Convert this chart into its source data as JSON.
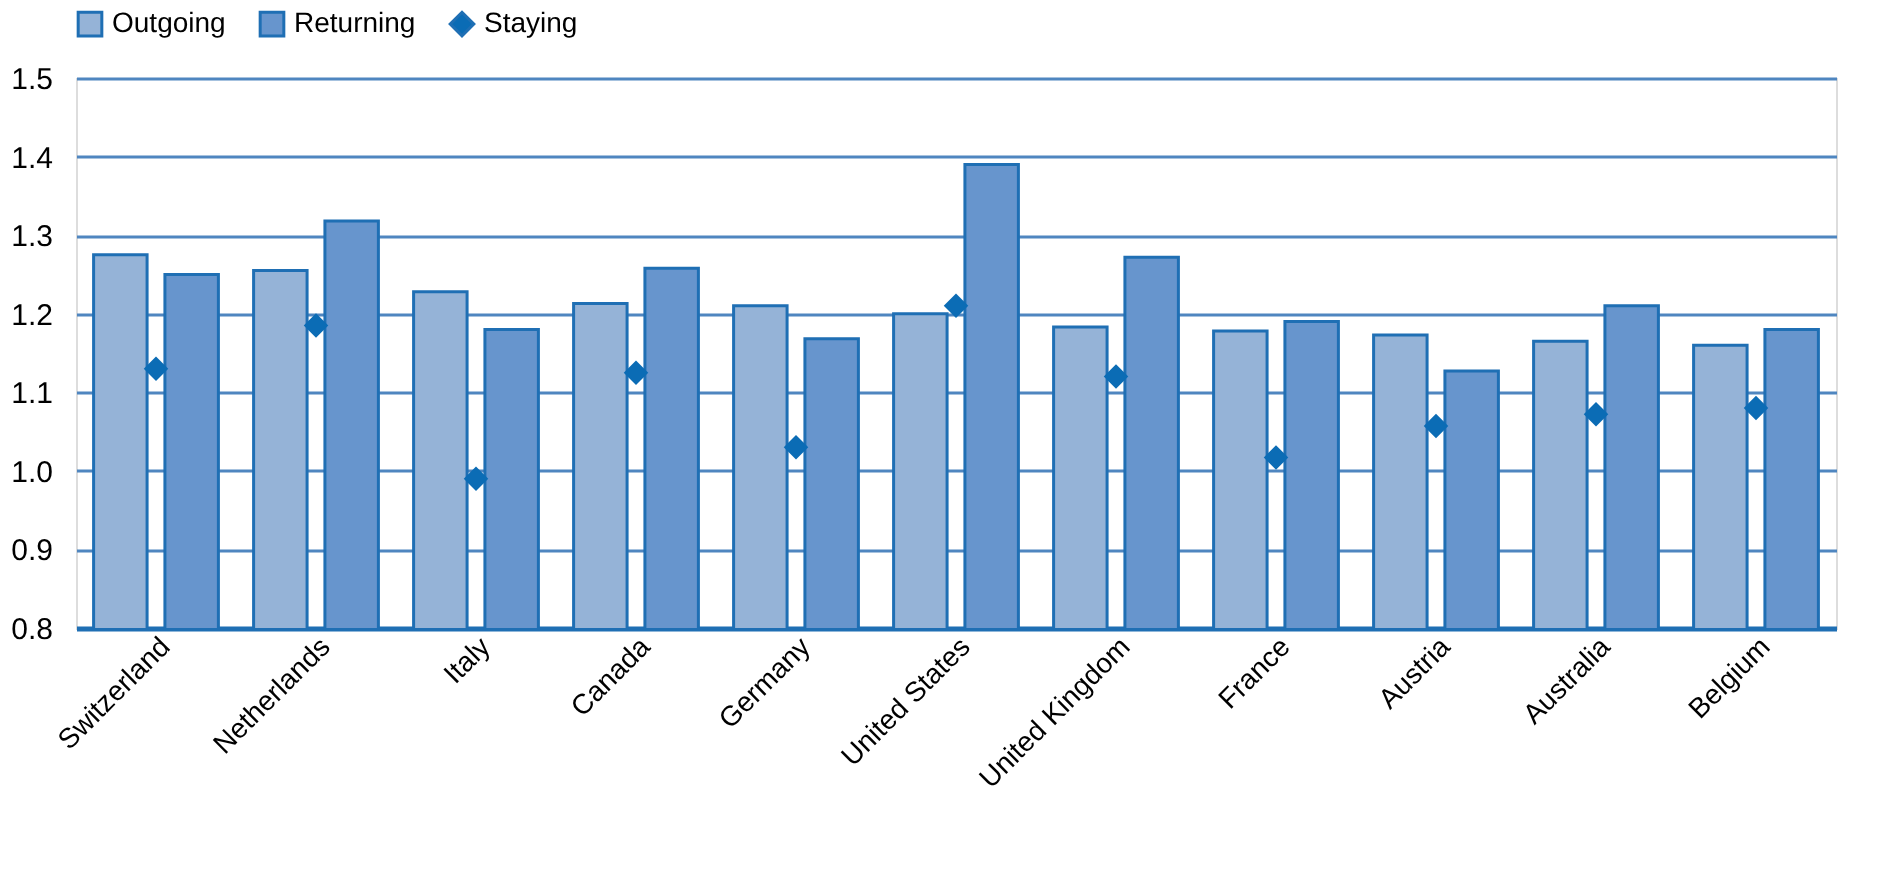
{
  "chart_data": {
    "type": "bar",
    "categories": [
      "Switzerland",
      "Netherlands",
      "Italy",
      "Canada",
      "Germany",
      "United States",
      "United Kingdom",
      "France",
      "Austria",
      "Australia",
      "Belgium"
    ],
    "series": [
      {
        "name": "Outgoing",
        "color": "#95b3d7",
        "values": [
          1.275,
          1.255,
          1.228,
          1.213,
          1.21,
          1.2,
          1.183,
          1.178,
          1.173,
          1.165,
          1.16
        ]
      },
      {
        "name": "Returning",
        "color": "#6795cd",
        "values": [
          1.25,
          1.318,
          1.18,
          1.258,
          1.168,
          1.39,
          1.272,
          1.19,
          1.127,
          1.21,
          1.18
        ]
      },
      {
        "name": "Staying",
        "type": "scatter",
        "marker": "diamond",
        "color": "#0b6cb5",
        "values": [
          1.13,
          1.185,
          0.99,
          1.125,
          1.03,
          1.21,
          1.12,
          1.017,
          1.057,
          1.072,
          1.08
        ]
      }
    ],
    "ylim": [
      0.8,
      1.5
    ],
    "yticks": [
      0.8,
      0.9,
      {
        "value": 1.0,
        "label": "1.0"
      },
      1.1,
      1.2,
      1.3,
      1.4,
      1.5
    ],
    "grid": "y",
    "legend": "top"
  }
}
